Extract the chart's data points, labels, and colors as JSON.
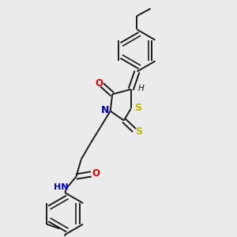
{
  "background_color": "#ebebeb",
  "bond_color": "#1a1a1a",
  "N_color": "#0000cc",
  "O_color": "#dd0000",
  "S_color": "#bbbb00",
  "H_color": "#1a1a1a",
  "figsize": [
    3.0,
    3.0
  ],
  "dpi": 100,
  "xlim": [
    0.15,
    0.85
  ],
  "ylim": [
    0.05,
    1.0
  ]
}
